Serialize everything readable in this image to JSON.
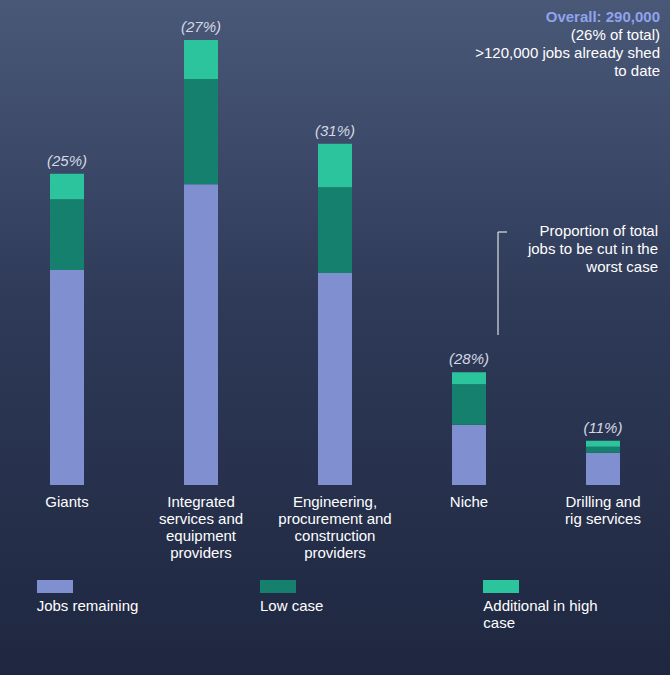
{
  "chart_data": {
    "type": "bar",
    "stacked": true,
    "tick_labels": "x",
    "legend": "bottom",
    "categories": [
      "Giants",
      "Integrated services and equipment providers",
      "Engineering, procurement and construction providers",
      "Niche",
      "Drilling and rig services"
    ],
    "series": [
      {
        "name": "Jobs remaining",
        "color": "#7f8fd0",
        "values": [
          143000,
          200000,
          141000,
          40000,
          21500
        ]
      },
      {
        "name": "Low case",
        "color": "#14806d",
        "values": [
          47000,
          70000,
          57000,
          27000,
          4000
        ]
      },
      {
        "name": "Additional in high case",
        "color": "#2cc49c",
        "values": [
          17000,
          26000,
          29000,
          8000,
          4000
        ]
      }
    ],
    "proportion_cut": {
      "values": [
        25,
        27,
        31,
        28,
        11
      ],
      "value_labels": [
        "(25%)",
        "(27%)",
        "(31%)",
        "(28%)",
        "(11%)"
      ]
    },
    "annotations": [
      "Overall: 290,000",
      "(26% of total)",
      ">120,000 jobs already shed to date",
      "Proportion of total jobs to be cut in the worst case"
    ]
  }
}
